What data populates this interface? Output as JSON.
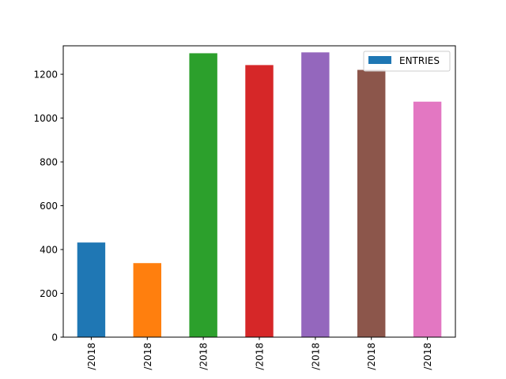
{
  "chart_data": {
    "type": "bar",
    "categories": [
      "/2018",
      "/2018",
      "/2018",
      "/2018",
      "/2018",
      "/2018",
      "/2018"
    ],
    "series": [
      {
        "name": "ENTRIES",
        "values": [
          432,
          338,
          1296,
          1242,
          1300,
          1220,
          1075
        ],
        "colors": [
          "#1f77b4",
          "#ff7f0e",
          "#2ca02c",
          "#d62728",
          "#9467bd",
          "#8c564b",
          "#e377c2"
        ]
      }
    ],
    "title": "",
    "xlabel": "",
    "ylabel": "",
    "ylim": [
      0,
      1330
    ],
    "yticks": [
      0,
      200,
      400,
      600,
      800,
      1000,
      1200
    ],
    "grid": false,
    "legend_position": "top-right",
    "legend_color": "#1f77b4"
  }
}
